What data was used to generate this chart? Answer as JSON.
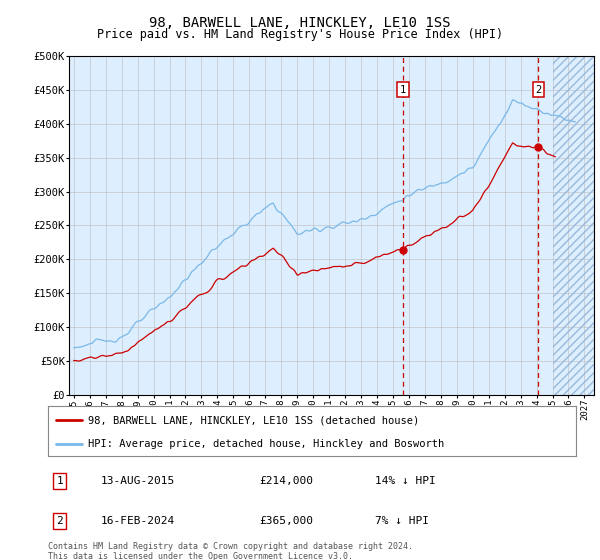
{
  "title": "98, BARWELL LANE, HINCKLEY, LE10 1SS",
  "subtitle": "Price paid vs. HM Land Registry's House Price Index (HPI)",
  "ylim": [
    0,
    500000
  ],
  "yticks": [
    0,
    50000,
    100000,
    150000,
    200000,
    250000,
    300000,
    350000,
    400000,
    450000,
    500000
  ],
  "ytick_labels": [
    "£0",
    "£50K",
    "£100K",
    "£150K",
    "£200K",
    "£250K",
    "£300K",
    "£350K",
    "£400K",
    "£450K",
    "£500K"
  ],
  "hpi_color": "#7ab8e8",
  "price_color": "#cc0000",
  "annotation_box_color": "#cc0000",
  "bg_color": "#ddeeff",
  "grid_color": "#bbbbbb",
  "sale1_date": "13-AUG-2015",
  "sale1_price": "£214,000",
  "sale1_hpi": "14% ↓ HPI",
  "sale1_x": 2015.62,
  "sale1_y": 214000,
  "sale2_date": "16-FEB-2024",
  "sale2_price": "£365,000",
  "sale2_hpi": "7% ↓ HPI",
  "sale2_x": 2024.12,
  "sale2_y": 365000,
  "vline1_x": 2015.62,
  "vline2_x": 2024.12,
  "legend_label1": "98, BARWELL LANE, HINCKLEY, LE10 1SS (detached house)",
  "legend_label2": "HPI: Average price, detached house, Hinckley and Bosworth",
  "footer": "Contains HM Land Registry data © Crown copyright and database right 2024.\nThis data is licensed under the Open Government Licence v3.0.",
  "xmin": 1995,
  "xmax": 2027,
  "hatch_xmin": 2025.0,
  "figwidth": 6.0,
  "figheight": 5.6,
  "dpi": 100
}
